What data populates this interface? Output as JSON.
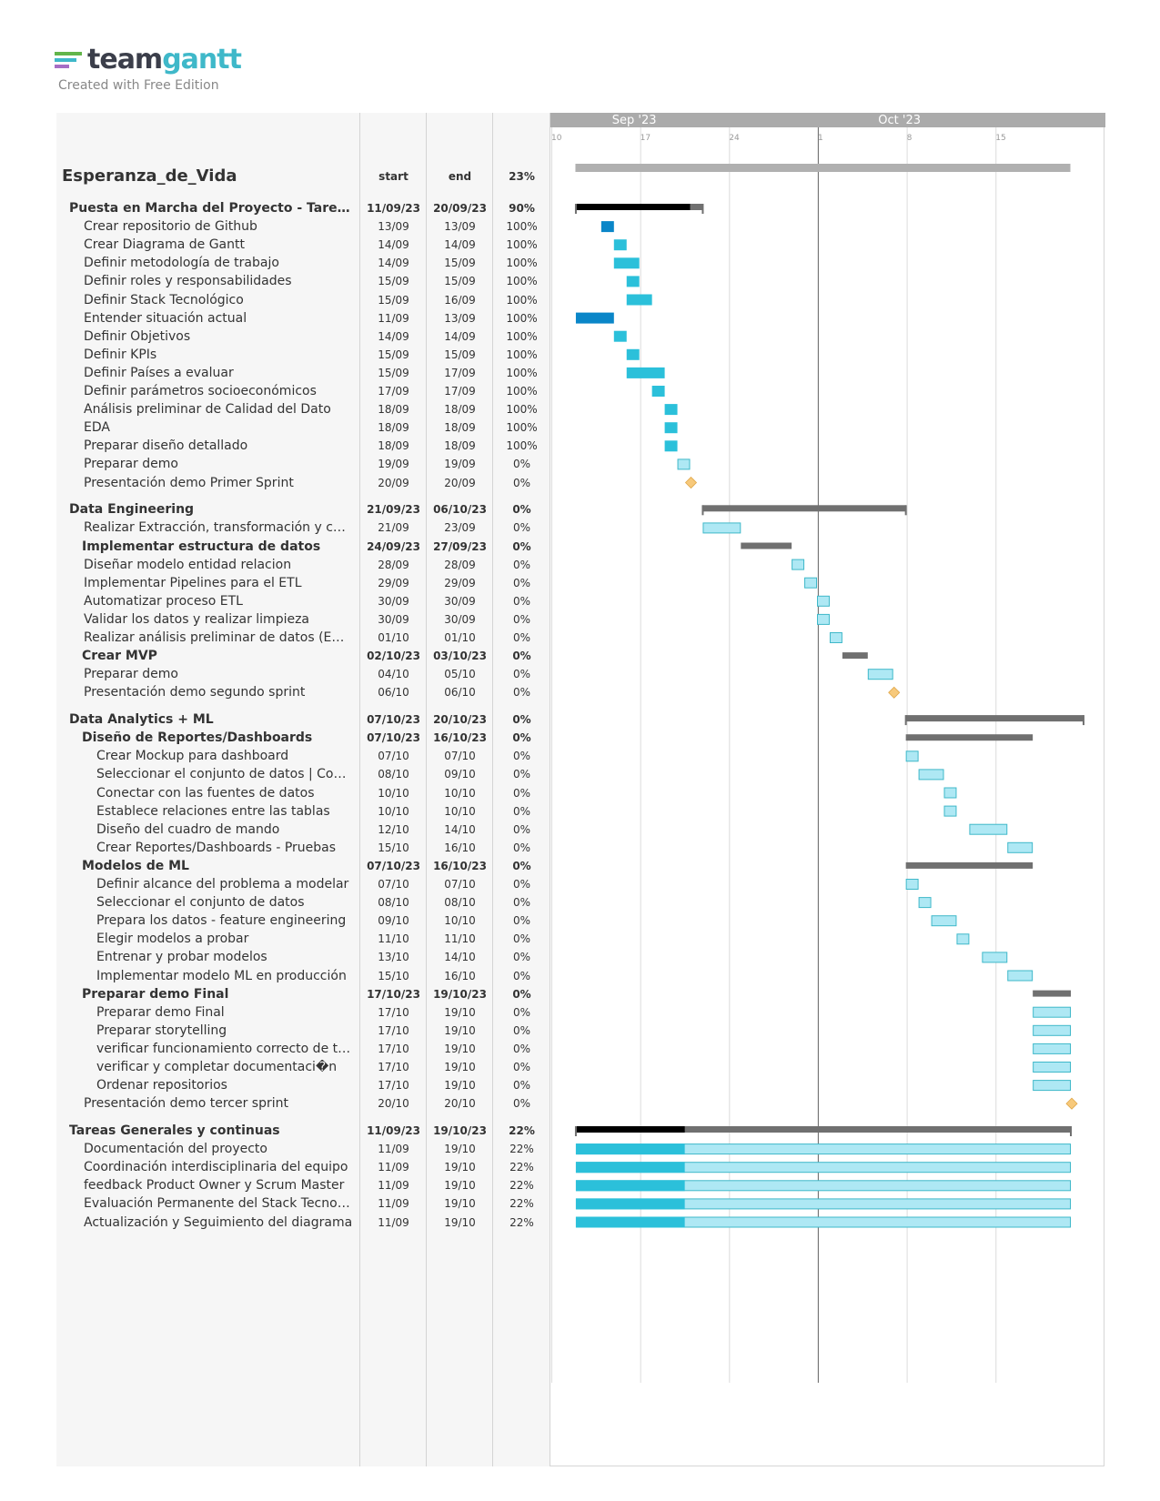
{
  "brand": {
    "logo_part1": "team",
    "logo_part2": "gantt",
    "subtitle": "Created with Free Edition",
    "colors": [
      "#62b54a",
      "#3fb8c9",
      "#a66ec5"
    ]
  },
  "table": {
    "headers": {
      "start": "start",
      "end": "end"
    },
    "project": {
      "name": "Esperanza_de_Vida",
      "percent": "23%"
    }
  },
  "timeline": {
    "months": [
      "Sep '23",
      "Oct '23"
    ],
    "ticks": [
      "10",
      "17",
      "24",
      "1",
      "8",
      "15"
    ],
    "today_marker": "1"
  },
  "rows": [
    {
      "name": "Puesta en Marcha del Proyecto - Tareas iniciales",
      "start": "11/09/23",
      "end": "20/09/23",
      "pct": "90%",
      "level": 0,
      "group": true
    },
    {
      "name": "Crear repositorio de Github",
      "start": "13/09",
      "end": "13/09",
      "pct": "100%",
      "level": 1
    },
    {
      "name": "Crear Diagrama de Gantt",
      "start": "14/09",
      "end": "14/09",
      "pct": "100%",
      "level": 1
    },
    {
      "name": "Definir metodología de trabajo",
      "start": "14/09",
      "end": "15/09",
      "pct": "100%",
      "level": 1
    },
    {
      "name": "Definir roles y responsabilidades",
      "start": "15/09",
      "end": "15/09",
      "pct": "100%",
      "level": 1
    },
    {
      "name": "Definir Stack Tecnológico",
      "start": "15/09",
      "end": "16/09",
      "pct": "100%",
      "level": 1
    },
    {
      "name": "Entender situación actual",
      "start": "11/09",
      "end": "13/09",
      "pct": "100%",
      "level": 1
    },
    {
      "name": "Definir Objetivos",
      "start": "14/09",
      "end": "14/09",
      "pct": "100%",
      "level": 1
    },
    {
      "name": "Definir KPIs",
      "start": "15/09",
      "end": "15/09",
      "pct": "100%",
      "level": 1
    },
    {
      "name": "Definir Países a evaluar",
      "start": "15/09",
      "end": "17/09",
      "pct": "100%",
      "level": 1
    },
    {
      "name": "Definir parámetros socioeconómicos",
      "start": "17/09",
      "end": "17/09",
      "pct": "100%",
      "level": 1
    },
    {
      "name": "Análisis preliminar de Calidad del Dato",
      "start": "18/09",
      "end": "18/09",
      "pct": "100%",
      "level": 1
    },
    {
      "name": "EDA",
      "start": "18/09",
      "end": "18/09",
      "pct": "100%",
      "level": 1
    },
    {
      "name": "Preparar diseño detallado",
      "start": "18/09",
      "end": "18/09",
      "pct": "100%",
      "level": 1
    },
    {
      "name": "Preparar demo",
      "start": "19/09",
      "end": "19/09",
      "pct": "0%",
      "level": 1
    },
    {
      "name": "Presentación demo Primer Sprint",
      "start": "20/09",
      "end": "20/09",
      "pct": "0%",
      "level": 1
    },
    {
      "spacer": true
    },
    {
      "name": "Data Engineering",
      "start": "21/09/23",
      "end": "06/10/23",
      "pct": "0%",
      "level": 0,
      "group": true
    },
    {
      "name": "Realizar Extracción, transformación y carga",
      "start": "21/09",
      "end": "23/09",
      "pct": "0%",
      "level": 1
    },
    {
      "name": "Implementar estructura de datos",
      "start": "24/09/23",
      "end": "27/09/23",
      "pct": "0%",
      "level": 1,
      "group": true
    },
    {
      "name": "Diseñar modelo entidad relacion",
      "start": "28/09",
      "end": "28/09",
      "pct": "0%",
      "level": 1
    },
    {
      "name": "Implementar Pipelines para el ETL",
      "start": "29/09",
      "end": "29/09",
      "pct": "0%",
      "level": 1
    },
    {
      "name": "Automatizar proceso ETL",
      "start": "30/09",
      "end": "30/09",
      "pct": "0%",
      "level": 1
    },
    {
      "name": "Validar los datos y realizar limpieza",
      "start": "30/09",
      "end": "30/09",
      "pct": "0%",
      "level": 1
    },
    {
      "name": "Realizar análisis preliminar de datos (EDA)",
      "start": "01/10",
      "end": "01/10",
      "pct": "0%",
      "level": 1
    },
    {
      "name": "Crear MVP",
      "start": "02/10/23",
      "end": "03/10/23",
      "pct": "0%",
      "level": 1,
      "group": true
    },
    {
      "name": "Preparar demo",
      "start": "04/10",
      "end": "05/10",
      "pct": "0%",
      "level": 1
    },
    {
      "name": "Presentación demo segundo sprint",
      "start": "06/10",
      "end": "06/10",
      "pct": "0%",
      "level": 1
    },
    {
      "spacer": true
    },
    {
      "name": "Data Analytics + ML",
      "start": "07/10/23",
      "end": "20/10/23",
      "pct": "0%",
      "level": 0,
      "group": true
    },
    {
      "name": "Diseño de Reportes/Dashboards",
      "start": "07/10/23",
      "end": "16/10/23",
      "pct": "0%",
      "level": 1,
      "group": true
    },
    {
      "name": "Crear Mockup para dashboard",
      "start": "07/10",
      "end": "07/10",
      "pct": "0%",
      "level": 2
    },
    {
      "name": "Seleccionar el conjunto de datos | Conjunto de datos",
      "start": "08/10",
      "end": "09/10",
      "pct": "0%",
      "level": 2
    },
    {
      "name": "Conectar con las fuentes de datos",
      "start": "10/10",
      "end": "10/10",
      "pct": "0%",
      "level": 2
    },
    {
      "name": "Establece relaciones entre las tablas",
      "start": "10/10",
      "end": "10/10",
      "pct": "0%",
      "level": 2
    },
    {
      "name": "Diseño del cuadro de mando",
      "start": "12/10",
      "end": "14/10",
      "pct": "0%",
      "level": 2
    },
    {
      "name": "Crear Reportes/Dashboards - Pruebas",
      "start": "15/10",
      "end": "16/10",
      "pct": "0%",
      "level": 2
    },
    {
      "name": "Modelos de ML",
      "start": "07/10/23",
      "end": "16/10/23",
      "pct": "0%",
      "level": 1,
      "group": true
    },
    {
      "name": "Definir alcance del problema a modelar",
      "start": "07/10",
      "end": "07/10",
      "pct": "0%",
      "level": 2
    },
    {
      "name": "Seleccionar el conjunto de datos",
      "start": "08/10",
      "end": "08/10",
      "pct": "0%",
      "level": 2
    },
    {
      "name": "Prepara los datos - feature engineering",
      "start": "09/10",
      "end": "10/10",
      "pct": "0%",
      "level": 2
    },
    {
      "name": "Elegir modelos a probar",
      "start": "11/10",
      "end": "11/10",
      "pct": "0%",
      "level": 2
    },
    {
      "name": "Entrenar y probar modelos",
      "start": "13/10",
      "end": "14/10",
      "pct": "0%",
      "level": 2
    },
    {
      "name": "Implementar modelo ML en producción",
      "start": "15/10",
      "end": "16/10",
      "pct": "0%",
      "level": 2
    },
    {
      "name": "Preparar demo Final",
      "start": "17/10/23",
      "end": "19/10/23",
      "pct": "0%",
      "level": 1,
      "group": true
    },
    {
      "name": "Preparar demo Final",
      "start": "17/10",
      "end": "19/10",
      "pct": "0%",
      "level": 2
    },
    {
      "name": "Preparar storytelling",
      "start": "17/10",
      "end": "19/10",
      "pct": "0%",
      "level": 2
    },
    {
      "name": "verificar funcionamiento correcto de todo",
      "start": "17/10",
      "end": "19/10",
      "pct": "0%",
      "level": 2
    },
    {
      "name": "verificar y completar documentaci�n",
      "start": "17/10",
      "end": "19/10",
      "pct": "0%",
      "level": 2
    },
    {
      "name": "Ordenar repositorios",
      "start": "17/10",
      "end": "19/10",
      "pct": "0%",
      "level": 2
    },
    {
      "name": "Presentación demo tercer sprint",
      "start": "20/10",
      "end": "20/10",
      "pct": "0%",
      "level": 1
    },
    {
      "spacer": true
    },
    {
      "name": "Tareas Generales y continuas",
      "start": "11/09/23",
      "end": "19/10/23",
      "pct": "22%",
      "level": 0,
      "group": true
    },
    {
      "name": "Documentación del proyecto",
      "start": "11/09",
      "end": "19/10",
      "pct": "22%",
      "level": 1
    },
    {
      "name": "Coordinación interdisciplinaria del equipo",
      "start": "11/09",
      "end": "19/10",
      "pct": "22%",
      "level": 1
    },
    {
      "name": "feedback Product Owner y Scrum Master",
      "start": "11/09",
      "end": "19/10",
      "pct": "22%",
      "level": 1
    },
    {
      "name": "Evaluación Permanente del Stack Tecnológico",
      "start": "11/09",
      "end": "19/10",
      "pct": "22%",
      "level": 1
    },
    {
      "name": "Actualización y Seguimiento del diagrama",
      "start": "11/09",
      "end": "19/10",
      "pct": "22%",
      "level": 1
    }
  ],
  "colors": {
    "done": "#2bc0da",
    "done_dark": "#0a86c8",
    "todo": "#aee8f4",
    "todo_border": "#3fb8c9",
    "group": "#707070",
    "group_done": "#000000",
    "milestone": "#f7c97b"
  }
}
